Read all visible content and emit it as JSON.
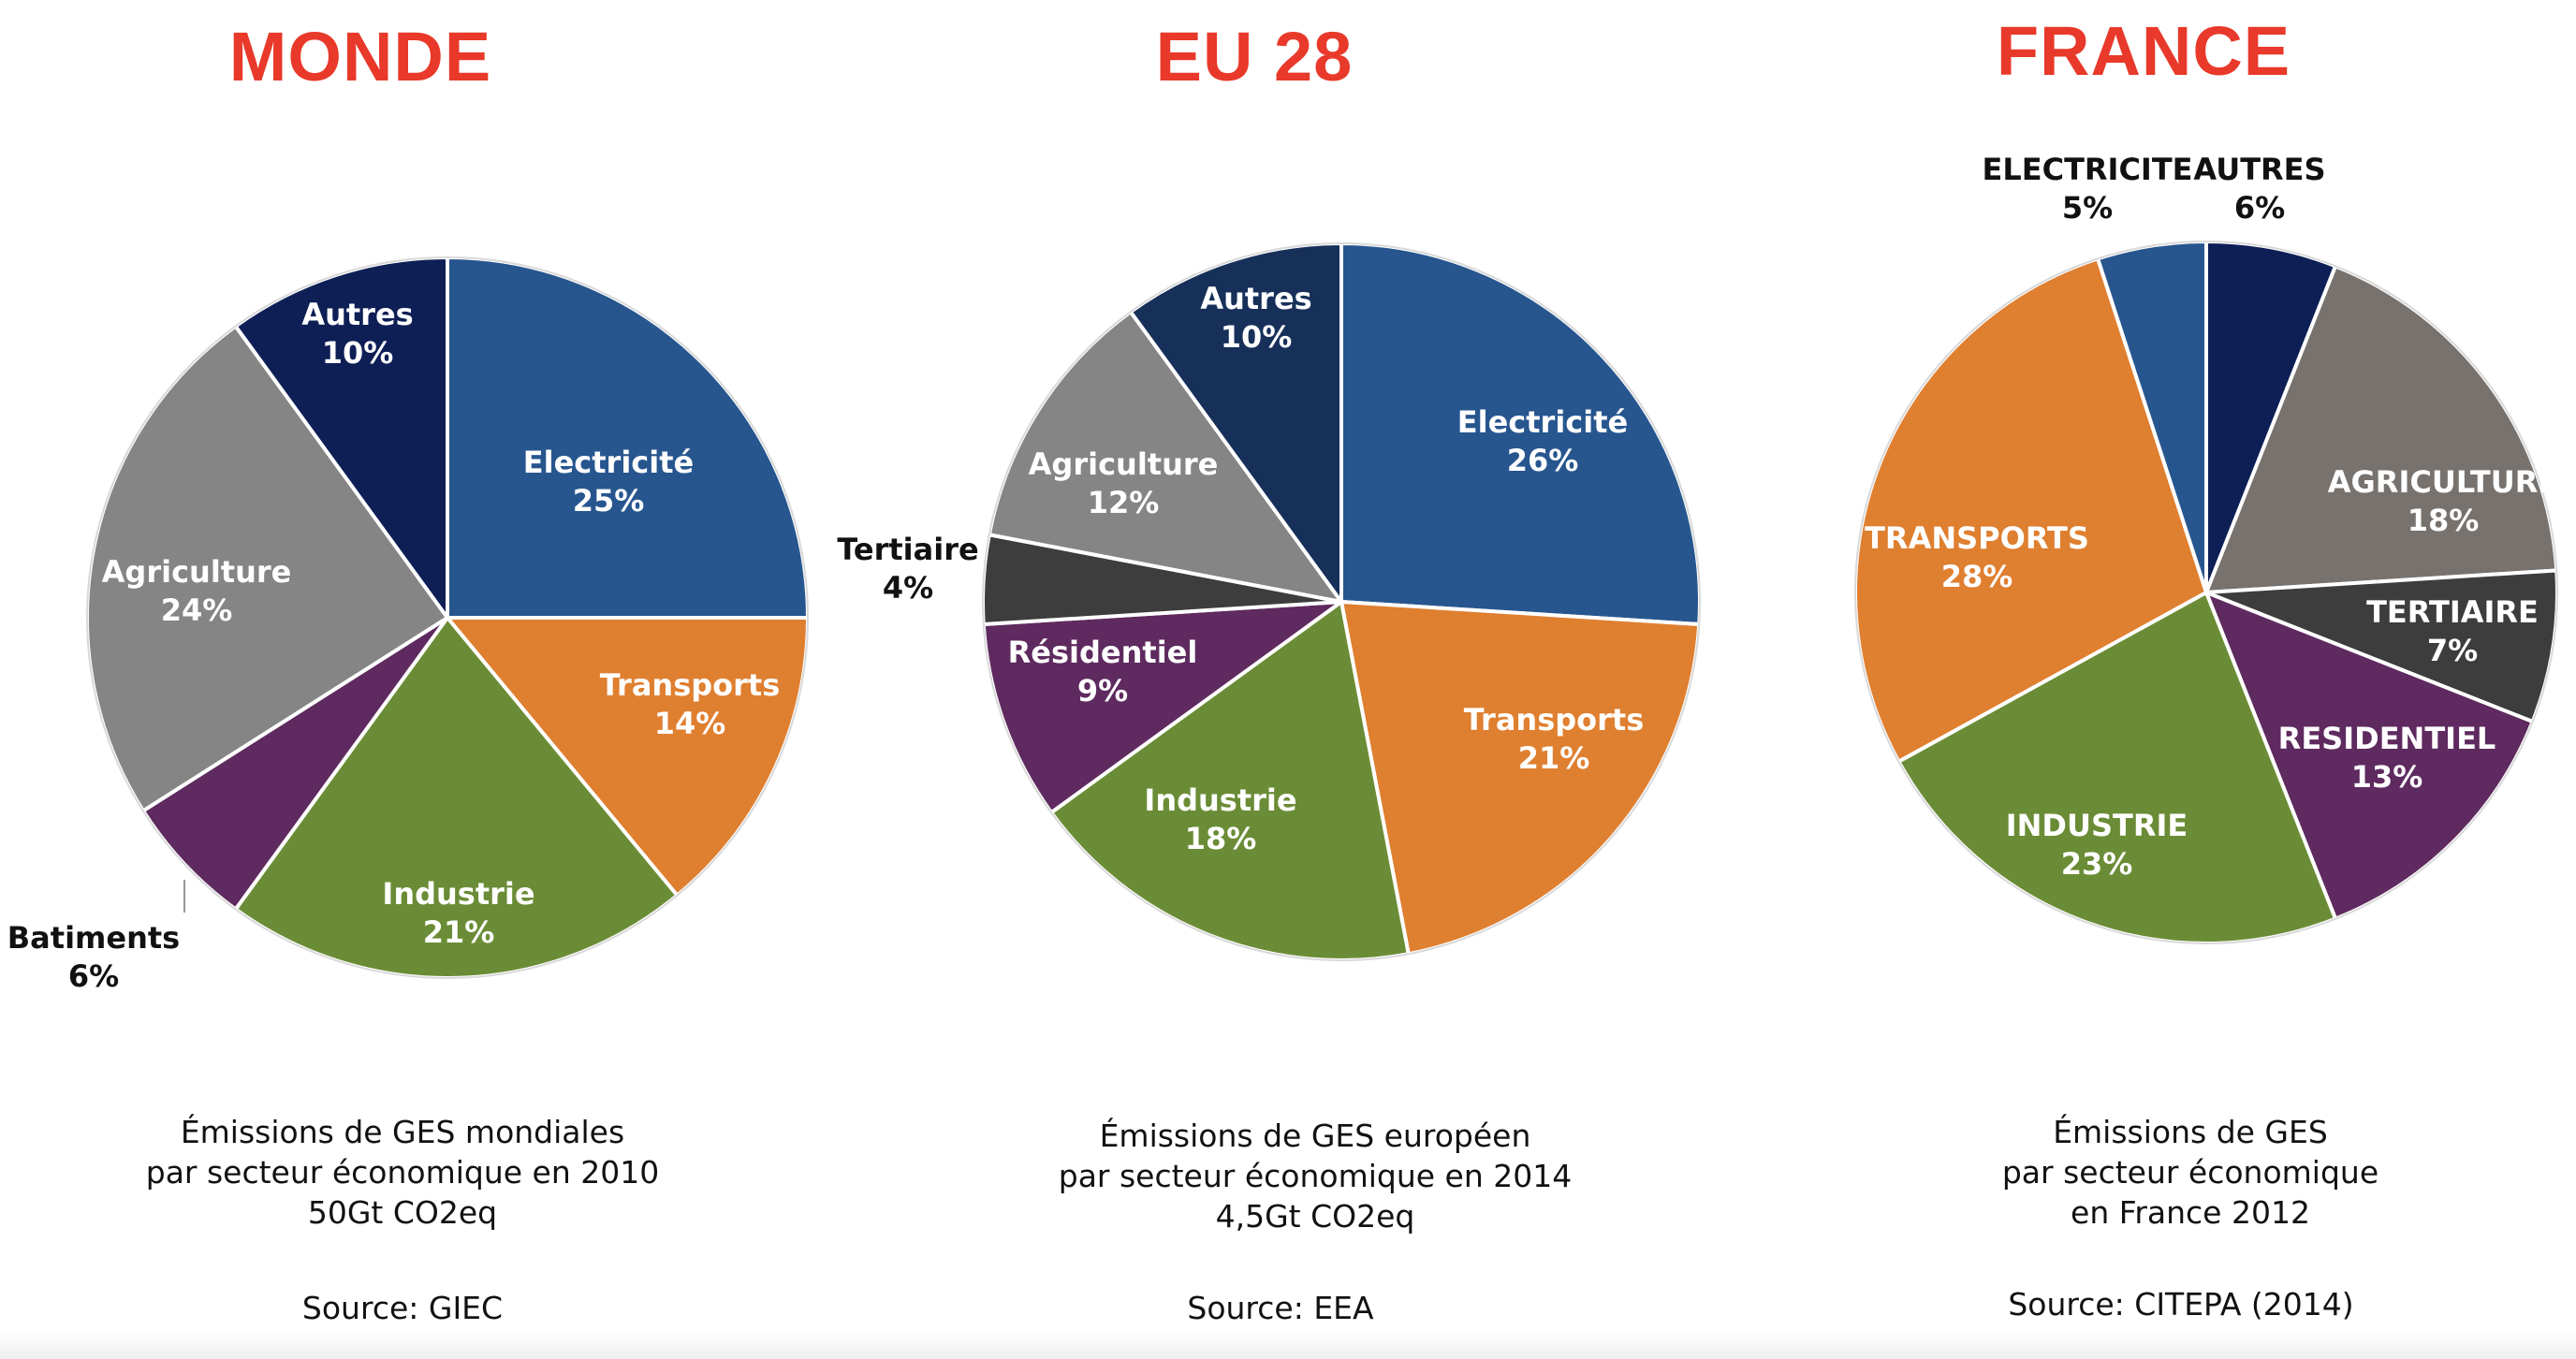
{
  "chart_data": [
    {
      "type": "pie",
      "title": "MONDE",
      "slices": [
        {
          "label": "Electricité",
          "pct_label": "25%",
          "value": 25,
          "color": "#27568f"
        },
        {
          "label": "Transports",
          "pct_label": "14%",
          "value": 14,
          "color": "#df7f30"
        },
        {
          "label": "Industrie",
          "pct_label": "21%",
          "value": 21,
          "color": "#6b8c36"
        },
        {
          "label": "Batiments",
          "pct_label": "6%",
          "value": 6,
          "color": "#5e2a5f"
        },
        {
          "label": "Agriculture",
          "pct_label": "24%",
          "value": 24,
          "color": "#858585"
        },
        {
          "label": "Autres",
          "pct_label": "10%",
          "value": 10,
          "color": "#0e1f56"
        }
      ],
      "caption": [
        "Émissions de GES mondiales",
        "par secteur économique en 2010",
        "50Gt CO2eq"
      ],
      "source": "Source: GIEC"
    },
    {
      "type": "pie",
      "title": "EU 28",
      "slices": [
        {
          "label": "Electricité",
          "pct_label": "26%",
          "value": 26,
          "color": "#27568f"
        },
        {
          "label": "Transports",
          "pct_label": "21%",
          "value": 21,
          "color": "#df7f30"
        },
        {
          "label": "Industrie",
          "pct_label": "18%",
          "value": 18,
          "color": "#6b8c36"
        },
        {
          "label": "Résidentiel",
          "pct_label": "9%",
          "value": 9,
          "color": "#5e2a5f"
        },
        {
          "label": "Tertiaire",
          "pct_label": "4%",
          "value": 4,
          "color": "#3d3d3d"
        },
        {
          "label": "Agriculture",
          "pct_label": "12%",
          "value": 12,
          "color": "#858585"
        },
        {
          "label": "Autres",
          "pct_label": "10%",
          "value": 10,
          "color": "#17305a"
        }
      ],
      "caption": [
        "Émissions de GES européen",
        "par secteur économique en 2014",
        "4,5Gt CO2eq"
      ],
      "source": "Source: EEA"
    },
    {
      "type": "pie",
      "title": "FRANCE",
      "slices": [
        {
          "label": "AUTRES",
          "pct_label": "6%",
          "value": 6,
          "color": "#0e1f56"
        },
        {
          "label": "AGRICULTURE",
          "pct_label": "18%",
          "value": 18,
          "color": "#77726e"
        },
        {
          "label": "TERTIAIRE",
          "pct_label": "7%",
          "value": 7,
          "color": "#3d3d3d"
        },
        {
          "label": "RESIDENTIEL",
          "pct_label": "13%",
          "value": 13,
          "color": "#5e2a5f"
        },
        {
          "label": "INDUSTRIE",
          "pct_label": "23%",
          "value": 23,
          "color": "#6b8c36"
        },
        {
          "label": "TRANSPORTS",
          "pct_label": "28%",
          "value": 28,
          "color": "#df7f30"
        },
        {
          "label": "ELECTRICITE",
          "pct_label": "5%",
          "value": 5,
          "color": "#27568f"
        }
      ],
      "caption": [
        "Émissions de GES",
        "par secteur économique",
        "en France 2012"
      ],
      "source": "Source: CITEPA (2014)"
    }
  ]
}
